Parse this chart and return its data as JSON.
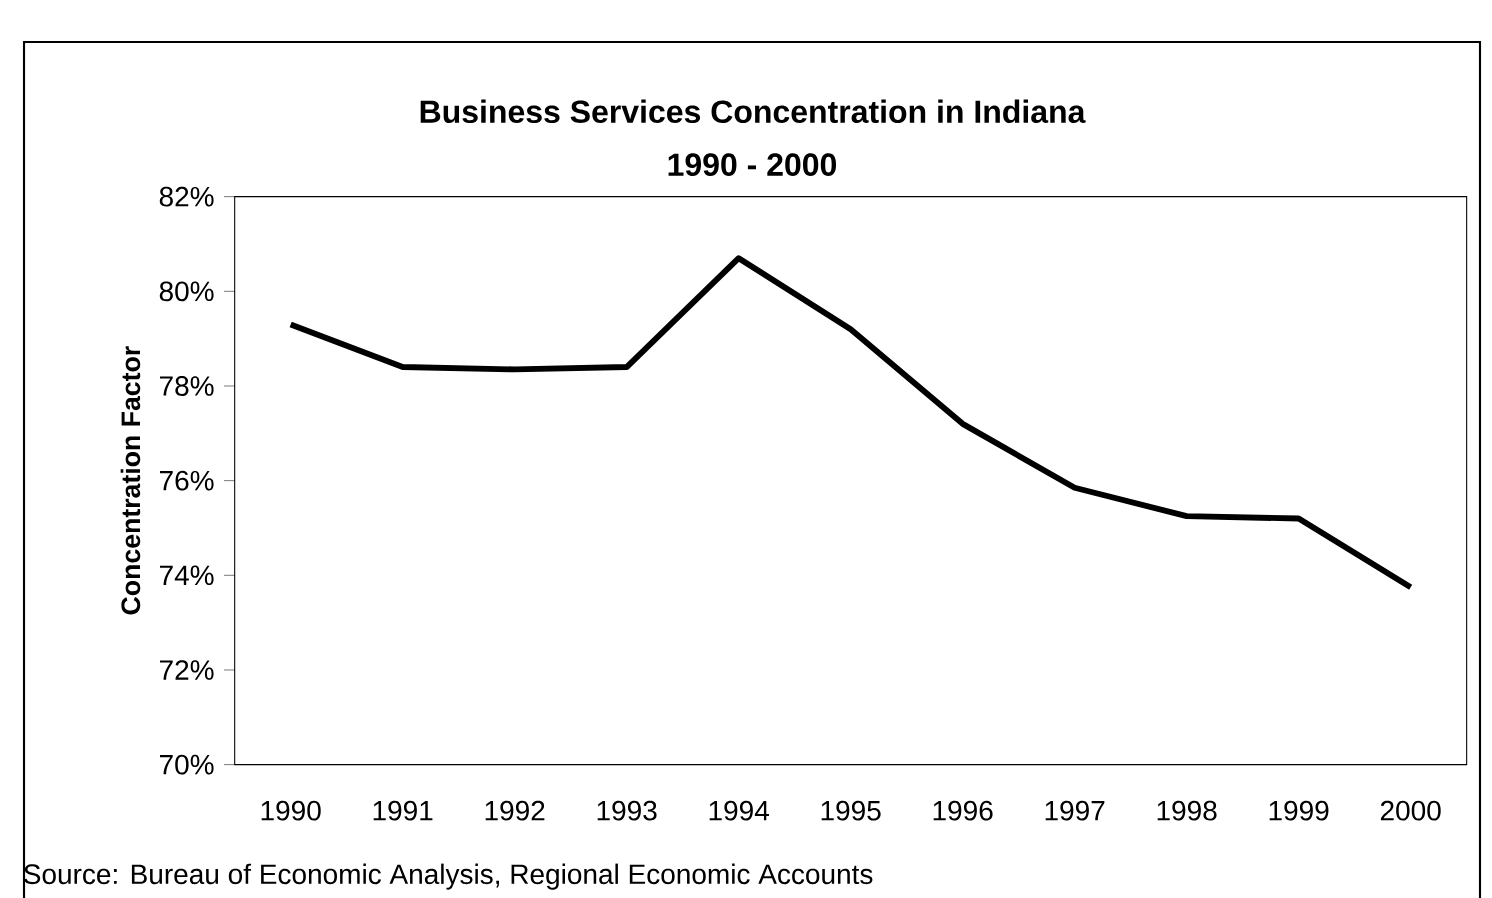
{
  "chart_data": {
    "type": "line",
    "title": "Business Services Concentration in Indiana",
    "subtitle": "1990 - 2000",
    "ylabel": "Concentration Factor",
    "categories": [
      "1990",
      "1991",
      "1992",
      "1993",
      "1994",
      "1995",
      "1996",
      "1997",
      "1998",
      "1999",
      "2000"
    ],
    "series": [
      {
        "color": "#000000",
        "values": [
          79.3,
          78.4,
          78.35,
          78.4,
          80.7,
          79.2,
          77.2,
          75.85,
          75.25,
          75.2,
          73.75
        ]
      }
    ],
    "ylim": [
      70,
      82
    ],
    "yticks": [
      {
        "value": 70,
        "label": "70%"
      },
      {
        "value": 72,
        "label": "72%"
      },
      {
        "value": 74,
        "label": "74%"
      },
      {
        "value": 76,
        "label": "76%"
      },
      {
        "value": 78,
        "label": "78%"
      },
      {
        "value": 80,
        "label": "80%"
      },
      {
        "value": 82,
        "label": "82%"
      }
    ],
    "grid": false,
    "marker": "none",
    "line_style": "solid",
    "annotations": [
      "Source: Bureau of Economic Analysis, Regional Economic Accounts"
    ]
  }
}
